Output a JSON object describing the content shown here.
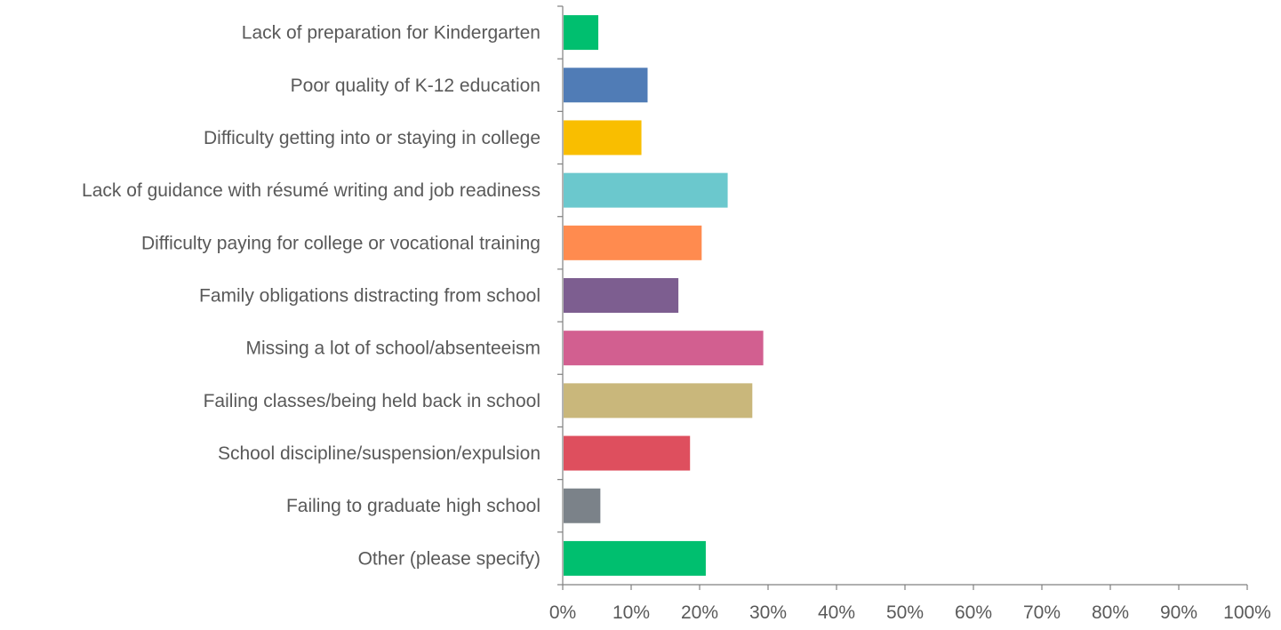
{
  "chart_data": {
    "type": "bar",
    "orientation": "horizontal",
    "title": "",
    "xlabel": "",
    "ylabel": "",
    "categories": [
      "Lack of preparation for Kindergarten",
      "Poor quality of K-12 education",
      "Difficulty getting into or staying in college",
      "Lack of guidance with résumé writing and job readiness",
      "Difficulty paying for college or vocational training",
      "Family obligations distracting from school",
      "Missing a lot of school/absenteeism",
      "Failing classes/being held back in school",
      "School discipline/suspension/expulsion",
      "Failing to graduate high school",
      "Other (please specify)"
    ],
    "values": [
      5.2,
      12.4,
      11.5,
      24.1,
      20.3,
      16.9,
      29.3,
      27.7,
      18.6,
      5.5,
      20.9
    ],
    "colors": [
      "#00BF6F",
      "#507CB6",
      "#F9BE00",
      "#6BC8CD",
      "#FF8B4F",
      "#7D5E90",
      "#D25F90",
      "#C9B77B",
      "#DE4F5E",
      "#7B8289",
      "#00BF6F"
    ],
    "xlim": [
      0,
      100
    ],
    "xticks": [
      0,
      10,
      20,
      30,
      40,
      50,
      60,
      70,
      80,
      90,
      100
    ],
    "tick_format": "percent",
    "grid": false,
    "legend": "none"
  }
}
